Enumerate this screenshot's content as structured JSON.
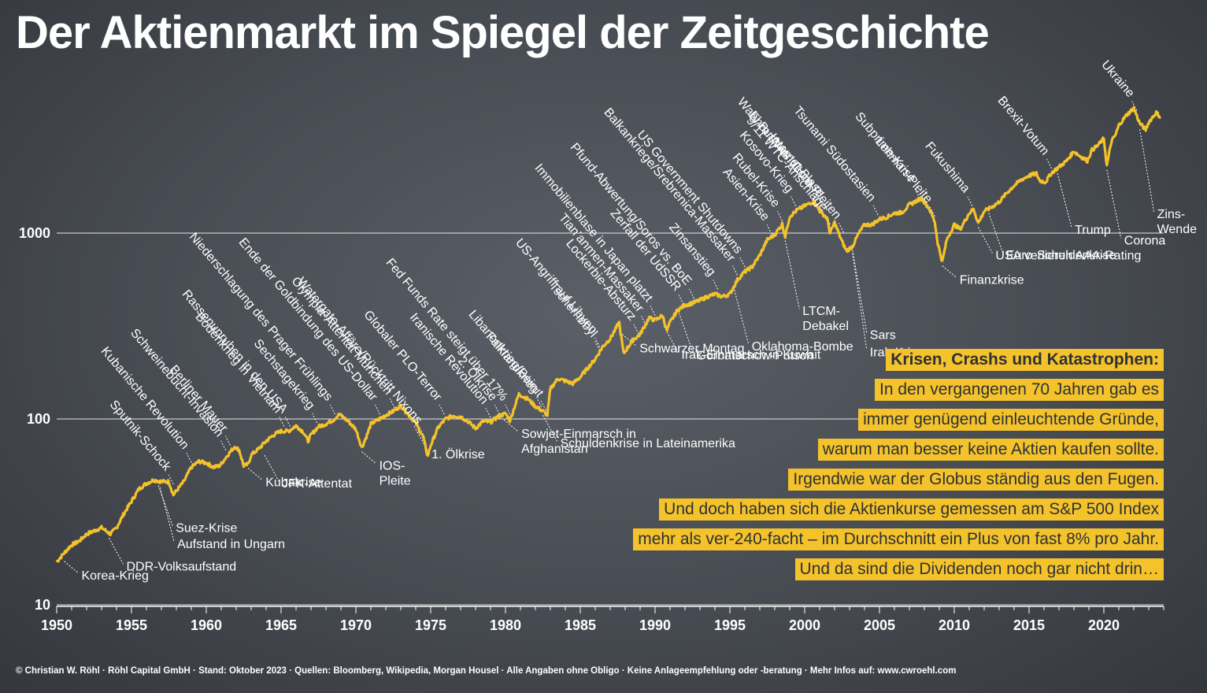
{
  "title": "Der Aktienmarkt im Spiegel der Zeitgeschichte",
  "colors": {
    "line": "#f4c22b",
    "background": "#474b52",
    "text": "#ffffff",
    "box": "#f4c22b"
  },
  "info_box": {
    "heading": "Krisen, Crashs und Katastrophen:",
    "lines": [
      "In den vergangenen 70 Jahren gab es",
      "immer genügend einleuchtende Gründe,",
      "warum man besser keine Aktien kaufen sollte.",
      "Irgendwie war der Globus ständig aus den Fugen.",
      "Und doch haben sich die Aktienkurse gemessen am S&P 500 Index",
      "mehr als ver-240-facht – im Durchschnitt ein Plus von fast 8% pro Jahr.",
      "Und da sind die Dividenden noch gar nicht drin…"
    ]
  },
  "footer": "© Christian W. Röhl · Röhl Capital GmbH · Stand: Oktober 2023 · Quellen: Bloomberg, Wikipedia, Morgan Housel · Alle Angaben ohne Obligo · Keine Anlageempfehlung oder -beratung · Mehr Infos auf: www.cwroehl.com",
  "chart_data": {
    "type": "line",
    "title": "Der Aktienmarkt im Spiegel der Zeitgeschichte",
    "xlabel": "",
    "ylabel": "",
    "y_scale": "log",
    "ylim": [
      10,
      5000
    ],
    "xlim": [
      1950,
      2024
    ],
    "grid": "horizontal",
    "yticks": [
      {
        "value": 10,
        "label": "10"
      },
      {
        "value": 100,
        "label": "100"
      },
      {
        "value": 1000,
        "label": "1000"
      }
    ],
    "xticks": [
      "1950",
      "1955",
      "1960",
      "1965",
      "1970",
      "1975",
      "1980",
      "1985",
      "1990",
      "1995",
      "2000",
      "2005",
      "2010",
      "2015",
      "2020"
    ],
    "series": [
      {
        "name": "",
        "points": [
          [
            1950.0,
            17
          ],
          [
            1950.5,
            19
          ],
          [
            1951.0,
            21
          ],
          [
            1951.5,
            22
          ],
          [
            1952.0,
            24
          ],
          [
            1952.5,
            25
          ],
          [
            1953.0,
            26
          ],
          [
            1953.6,
            24
          ],
          [
            1954.0,
            26
          ],
          [
            1954.5,
            31
          ],
          [
            1955.0,
            36
          ],
          [
            1955.5,
            42
          ],
          [
            1956.0,
            45
          ],
          [
            1956.5,
            47
          ],
          [
            1957.0,
            46
          ],
          [
            1957.5,
            46
          ],
          [
            1957.8,
            39
          ],
          [
            1958.0,
            41
          ],
          [
            1958.5,
            46
          ],
          [
            1959.0,
            55
          ],
          [
            1959.5,
            59
          ],
          [
            1960.0,
            58
          ],
          [
            1960.5,
            55
          ],
          [
            1960.9,
            56
          ],
          [
            1961.5,
            65
          ],
          [
            1961.9,
            71
          ],
          [
            1962.2,
            68
          ],
          [
            1962.5,
            56
          ],
          [
            1962.8,
            57
          ],
          [
            1963.0,
            64
          ],
          [
            1963.5,
            69
          ],
          [
            1964.0,
            76
          ],
          [
            1964.5,
            82
          ],
          [
            1965.0,
            86
          ],
          [
            1965.5,
            86
          ],
          [
            1966.0,
            92
          ],
          [
            1966.5,
            85
          ],
          [
            1966.8,
            76
          ],
          [
            1967.0,
            82
          ],
          [
            1967.5,
            91
          ],
          [
            1968.0,
            94
          ],
          [
            1968.5,
            99
          ],
          [
            1968.9,
            106
          ],
          [
            1969.5,
            97
          ],
          [
            1970.0,
            88
          ],
          [
            1970.4,
            70
          ],
          [
            1970.8,
            84
          ],
          [
            1971.0,
            94
          ],
          [
            1971.5,
            99
          ],
          [
            1972.0,
            105
          ],
          [
            1972.5,
            110
          ],
          [
            1973.0,
            118
          ],
          [
            1973.5,
            106
          ],
          [
            1974.0,
            95
          ],
          [
            1974.5,
            80
          ],
          [
            1974.8,
            63
          ],
          [
            1975.0,
            72
          ],
          [
            1975.5,
            90
          ],
          [
            1976.0,
            100
          ],
          [
            1976.5,
            104
          ],
          [
            1977.0,
            103
          ],
          [
            1977.5,
            97
          ],
          [
            1978.0,
            89
          ],
          [
            1978.5,
            97
          ],
          [
            1979.0,
            96
          ],
          [
            1979.5,
            103
          ],
          [
            1980.0,
            107
          ],
          [
            1980.3,
            98
          ],
          [
            1980.9,
            136
          ],
          [
            1981.5,
            128
          ],
          [
            1982.0,
            117
          ],
          [
            1982.5,
            110
          ],
          [
            1982.8,
            105
          ],
          [
            1983.0,
            145
          ],
          [
            1983.5,
            165
          ],
          [
            1984.0,
            160
          ],
          [
            1984.5,
            155
          ],
          [
            1985.0,
            168
          ],
          [
            1985.5,
            188
          ],
          [
            1986.0,
            210
          ],
          [
            1986.5,
            245
          ],
          [
            1987.0,
            270
          ],
          [
            1987.6,
            330
          ],
          [
            1987.9,
            225
          ],
          [
            1988.5,
            265
          ],
          [
            1989.0,
            285
          ],
          [
            1989.6,
            350
          ],
          [
            1990.0,
            340
          ],
          [
            1990.5,
            360
          ],
          [
            1990.8,
            300
          ],
          [
            1991.0,
            330
          ],
          [
            1991.5,
            385
          ],
          [
            1992.0,
            410
          ],
          [
            1992.5,
            420
          ],
          [
            1993.0,
            435
          ],
          [
            1993.5,
            455
          ],
          [
            1994.0,
            470
          ],
          [
            1994.5,
            455
          ],
          [
            1995.0,
            470
          ],
          [
            1995.5,
            560
          ],
          [
            1996.0,
            620
          ],
          [
            1996.5,
            660
          ],
          [
            1997.0,
            760
          ],
          [
            1997.5,
            920
          ],
          [
            1998.0,
            980
          ],
          [
            1998.5,
            1120
          ],
          [
            1998.7,
            960
          ],
          [
            1999.0,
            1230
          ],
          [
            1999.5,
            1330
          ],
          [
            2000.0,
            1400
          ],
          [
            2000.6,
            1480
          ],
          [
            2001.0,
            1320
          ],
          [
            2001.5,
            1200
          ],
          [
            2001.7,
            1000
          ],
          [
            2002.0,
            1140
          ],
          [
            2002.5,
            900
          ],
          [
            2002.8,
            800
          ],
          [
            2003.2,
            850
          ],
          [
            2003.6,
            990
          ],
          [
            2004.0,
            1110
          ],
          [
            2004.5,
            1110
          ],
          [
            2005.0,
            1190
          ],
          [
            2005.5,
            1220
          ],
          [
            2006.0,
            1280
          ],
          [
            2006.5,
            1290
          ],
          [
            2007.0,
            1420
          ],
          [
            2007.8,
            1540
          ],
          [
            2008.3,
            1370
          ],
          [
            2008.7,
            1150
          ],
          [
            2008.9,
            880
          ],
          [
            2009.2,
            700
          ],
          [
            2009.5,
            920
          ],
          [
            2010.0,
            1110
          ],
          [
            2010.4,
            1050
          ],
          [
            2011.0,
            1280
          ],
          [
            2011.3,
            1350
          ],
          [
            2011.6,
            1130
          ],
          [
            2012.0,
            1310
          ],
          [
            2012.5,
            1380
          ],
          [
            2013.0,
            1470
          ],
          [
            2013.5,
            1640
          ],
          [
            2014.0,
            1800
          ],
          [
            2014.5,
            1940
          ],
          [
            2015.0,
            2040
          ],
          [
            2015.5,
            2090
          ],
          [
            2015.7,
            1920
          ],
          [
            2016.1,
            1880
          ],
          [
            2016.5,
            2110
          ],
          [
            2017.0,
            2270
          ],
          [
            2017.5,
            2440
          ],
          [
            2018.0,
            2760
          ],
          [
            2018.3,
            2630
          ],
          [
            2018.9,
            2450
          ],
          [
            2019.2,
            2800
          ],
          [
            2019.6,
            2960
          ],
          [
            2020.0,
            3230
          ],
          [
            2020.2,
            2300
          ],
          [
            2020.5,
            3100
          ],
          [
            2020.8,
            3400
          ],
          [
            2021.0,
            3800
          ],
          [
            2021.5,
            4300
          ],
          [
            2022.0,
            4700
          ],
          [
            2022.4,
            3900
          ],
          [
            2022.8,
            3600
          ],
          [
            2023.0,
            3950
          ],
          [
            2023.5,
            4450
          ],
          [
            2023.8,
            4200
          ]
        ]
      }
    ],
    "annotations": [
      {
        "label": "Korea-Krieg",
        "x": 1950.5,
        "y": 18,
        "side": "below"
      },
      {
        "label": "DDR-Volksaufstand",
        "x": 1953.5,
        "y": 24,
        "side": "below"
      },
      {
        "label": "Suez-Krise",
        "x": 1956.8,
        "y": 46,
        "side": "below"
      },
      {
        "label": "Aufstand in Ungarn",
        "x": 1956.9,
        "y": 45,
        "side": "below"
      },
      {
        "label": "Kubakrise",
        "x": 1962.8,
        "y": 57,
        "side": "below"
      },
      {
        "label": "JFK-Attentat",
        "x": 1963.9,
        "y": 67,
        "side": "below"
      },
      {
        "label": "IOS-\nPleite",
        "x": 1970.4,
        "y": 70,
        "side": "below"
      },
      {
        "label": "1. Ölkrise",
        "x": 1973.9,
        "y": 96,
        "side": "below"
      },
      {
        "label": "Sowjet-Einmarsch in\nAfghanistan",
        "x": 1979.9,
        "y": 104,
        "side": "below"
      },
      {
        "label": "Schuldenkrise in Lateinamerika",
        "x": 1982.5,
        "y": 110,
        "side": "below"
      },
      {
        "label": "Schwarzer Montag",
        "x": 1987.8,
        "y": 300,
        "side": "below"
      },
      {
        "label": "Irak-Einmarsch in Kuwait",
        "x": 1990.6,
        "y": 330,
        "side": "below"
      },
      {
        "label": "Gorbatschow-Putsch",
        "x": 1991.6,
        "y": 390,
        "side": "below"
      },
      {
        "label": "Oklahoma-Bombe",
        "x": 1995.3,
        "y": 520,
        "side": "below"
      },
      {
        "label": "LTCM-\nDebakel",
        "x": 1998.7,
        "y": 960,
        "side": "below"
      },
      {
        "label": "Sars",
        "x": 2003.2,
        "y": 850,
        "side": "below"
      },
      {
        "label": "Irak-Krieg",
        "x": 2003.2,
        "y": 820,
        "side": "below"
      },
      {
        "label": "Finanzkrise",
        "x": 2009.2,
        "y": 700,
        "side": "below"
      },
      {
        "label": "USA verlieren AAA-Rating",
        "x": 2011.6,
        "y": 1130,
        "side": "below"
      },
      {
        "label": "Euro-Schuldenkrise",
        "x": 2012.3,
        "y": 1350,
        "side": "below"
      },
      {
        "label": "Trump",
        "x": 2016.9,
        "y": 2200,
        "side": "below"
      },
      {
        "label": "Corona",
        "x": 2020.2,
        "y": 2300,
        "side": "below"
      },
      {
        "label": "Zins-\nWende",
        "x": 2022.4,
        "y": 3800,
        "side": "below"
      },
      {
        "label": "Sputnik-Schock",
        "x": 1957.8,
        "y": 42,
        "side": "above"
      },
      {
        "label": "Kubanische Revolution",
        "x": 1959.0,
        "y": 55,
        "side": "above"
      },
      {
        "label": "Schweinebucht-Invasion",
        "x": 1961.3,
        "y": 64,
        "side": "above"
      },
      {
        "label": "Berliner Mauer",
        "x": 1961.6,
        "y": 68,
        "side": "above"
      },
      {
        "label": "Bodenkrieg in Vietnam",
        "x": 1965.2,
        "y": 86,
        "side": "above"
      },
      {
        "label": "Rassenunruhen in den USA",
        "x": 1965.6,
        "y": 86,
        "side": "above"
      },
      {
        "label": "Sechstagekrieg",
        "x": 1967.4,
        "y": 90,
        "side": "above"
      },
      {
        "label": "Niederschlagung des Prager Frühlings",
        "x": 1968.6,
        "y": 100,
        "side": "above"
      },
      {
        "label": "Ende der Goldbindung des US-Dollar",
        "x": 1971.6,
        "y": 100,
        "side": "above"
      },
      {
        "label": "Olympia-Attentat München",
        "x": 1972.6,
        "y": 108,
        "side": "above"
      },
      {
        "label": "Watergate-Affäre/Rücktritt Nixons",
        "x": 1974.6,
        "y": 75,
        "side": "above"
      },
      {
        "label": "Globaler PLO-Terror",
        "x": 1975.9,
        "y": 100,
        "side": "above"
      },
      {
        "label": "Fed Funds Rate steigt über 17%",
        "x": 1980.3,
        "y": 100,
        "side": "above"
      },
      {
        "label": "Iranische Revolution",
        "x": 1979.0,
        "y": 96,
        "side": "above"
      },
      {
        "label": "2. Ölkrise",
        "x": 1979.6,
        "y": 100,
        "side": "above"
      },
      {
        "label": "Falklandkrieg",
        "x": 1982.4,
        "y": 110,
        "side": "above"
      },
      {
        "label": "Libanonkrieg/Beirut",
        "x": 1982.7,
        "y": 105,
        "side": "above"
      },
      {
        "label": "Tschernobyl",
        "x": 1986.3,
        "y": 220,
        "side": "above"
      },
      {
        "label": "US-Angriff auf Libyen",
        "x": 1986.3,
        "y": 230,
        "side": "above"
      },
      {
        "label": "Lockerbie-Absturz",
        "x": 1988.9,
        "y": 270,
        "side": "above"
      },
      {
        "label": "Tian’anmen-Massaker",
        "x": 1989.4,
        "y": 300,
        "side": "above"
      },
      {
        "label": "Immobilienblase in Japan platzt",
        "x": 1990.0,
        "y": 340,
        "side": "above"
      },
      {
        "label": "Zerfall der UdSSR",
        "x": 1991.9,
        "y": 390,
        "side": "above"
      },
      {
        "label": "Pfund-Abwertung/Soros vs. BoE",
        "x": 1992.6,
        "y": 420,
        "side": "above"
      },
      {
        "label": "Zinsanstieg",
        "x": 1994.2,
        "y": 470,
        "side": "above"
      },
      {
        "label": "Balkankriege/Srebrenica-Massaker",
        "x": 1995.5,
        "y": 560,
        "side": "above"
      },
      {
        "label": "US Government Shutdowns",
        "x": 1996.0,
        "y": 620,
        "side": "above"
      },
      {
        "label": "Asien-Krise",
        "x": 1997.8,
        "y": 930,
        "side": "above"
      },
      {
        "label": "Rubel-Krise",
        "x": 1998.5,
        "y": 1100,
        "side": "above"
      },
      {
        "label": "Kosovo-Krieg",
        "x": 1999.4,
        "y": 1320,
        "side": "above"
      },
      {
        "label": "Wahl Bush vs. Gore",
        "x": 2000.8,
        "y": 1420,
        "side": "above"
      },
      {
        "label": "Internet-Blase",
        "x": 2001.5,
        "y": 1250,
        "side": "above"
      },
      {
        "label": "9/11 WTC-Anschläge",
        "x": 2001.7,
        "y": 1050,
        "side": "above"
      },
      {
        "label": "Enron/Worldcom-Pleiten",
        "x": 2002.6,
        "y": 950,
        "side": "above"
      },
      {
        "label": "Tsunami Südostasien",
        "x": 2004.9,
        "y": 1180,
        "side": "above"
      },
      {
        "label": "Subprime-Krise",
        "x": 2007.6,
        "y": 1500,
        "side": "above"
      },
      {
        "label": "Lehman-Pleite",
        "x": 2008.7,
        "y": 1160,
        "side": "above"
      },
      {
        "label": "Fukushima",
        "x": 2011.2,
        "y": 1320,
        "side": "above"
      },
      {
        "label": "Brexit-Votum",
        "x": 2016.5,
        "y": 2100,
        "side": "above"
      },
      {
        "label": "Ukraine",
        "x": 2022.2,
        "y": 4300,
        "side": "above"
      }
    ]
  }
}
